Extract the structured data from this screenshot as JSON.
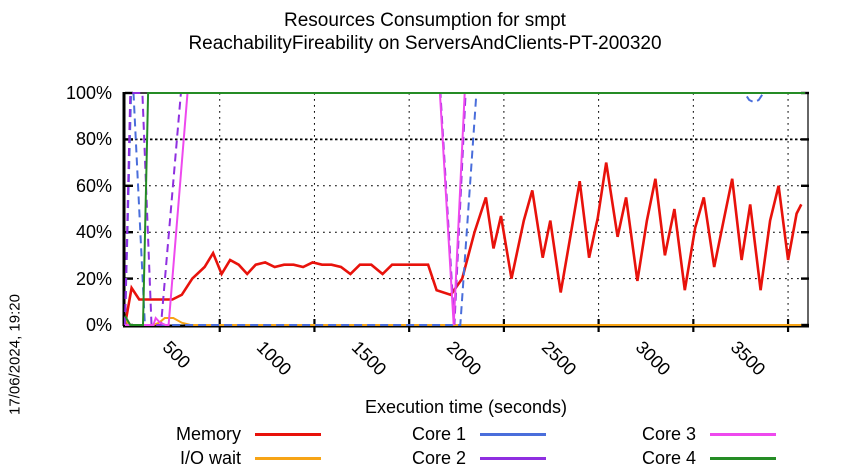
{
  "title": {
    "line1": "Resources Consumption for smpt",
    "line2": "ReachabilityFireability on ServersAndClients-PT-200320"
  },
  "timestamp": "17/06/2024, 19:20",
  "chart_data": {
    "type": "line",
    "title": "Resources Consumption for smpt ReachabilityFireability on ServersAndClients-PT-200320",
    "xlabel": "Execution time (seconds)",
    "ylabel": "",
    "xlim": [
      0,
      3600
    ],
    "ylim": [
      0,
      100
    ],
    "grid": true,
    "legend_position": "bottom",
    "x_tick_values": [
      500,
      1000,
      1500,
      2000,
      2500,
      3000,
      3500
    ],
    "x_tick_labels": [
      "500",
      "1000",
      "1500",
      "2000",
      "2500",
      "3000",
      "3500"
    ],
    "y_tick_values": [
      0,
      20,
      40,
      60,
      80,
      100
    ],
    "y_tick_labels": [
      "0%",
      "20%",
      "40%",
      "60%",
      "80%",
      "100%"
    ],
    "series": [
      {
        "name": "Memory",
        "color": "#e8120b",
        "width": 2.6,
        "dash": "",
        "points": [
          [
            0,
            0
          ],
          [
            35,
            16
          ],
          [
            75,
            11
          ],
          [
            250,
            11
          ],
          [
            300,
            13
          ],
          [
            355,
            20
          ],
          [
            420,
            25
          ],
          [
            465,
            31
          ],
          [
            510,
            22
          ],
          [
            555,
            28
          ],
          [
            600,
            26
          ],
          [
            645,
            22
          ],
          [
            690,
            26
          ],
          [
            740,
            27
          ],
          [
            790,
            25
          ],
          [
            840,
            26
          ],
          [
            890,
            26
          ],
          [
            940,
            25
          ],
          [
            990,
            27
          ],
          [
            1040,
            26
          ],
          [
            1090,
            26
          ],
          [
            1140,
            25
          ],
          [
            1190,
            22
          ],
          [
            1240,
            26
          ],
          [
            1300,
            26
          ],
          [
            1360,
            22
          ],
          [
            1410,
            26
          ],
          [
            1470,
            26
          ],
          [
            1530,
            26
          ],
          [
            1600,
            26
          ],
          [
            1645,
            15
          ],
          [
            1720,
            13
          ],
          [
            1780,
            20
          ],
          [
            1845,
            40
          ],
          [
            1905,
            55
          ],
          [
            1945,
            33
          ],
          [
            1985,
            47
          ],
          [
            2040,
            20
          ],
          [
            2105,
            45
          ],
          [
            2150,
            58
          ],
          [
            2205,
            29
          ],
          [
            2245,
            45
          ],
          [
            2300,
            14
          ],
          [
            2355,
            40
          ],
          [
            2400,
            62
          ],
          [
            2450,
            29
          ],
          [
            2495,
            46
          ],
          [
            2540,
            70
          ],
          [
            2600,
            38
          ],
          [
            2645,
            55
          ],
          [
            2705,
            19
          ],
          [
            2755,
            45
          ],
          [
            2800,
            63
          ],
          [
            2850,
            30
          ],
          [
            2900,
            50
          ],
          [
            2955,
            15
          ],
          [
            3010,
            42
          ],
          [
            3055,
            55
          ],
          [
            3110,
            25
          ],
          [
            3160,
            45
          ],
          [
            3205,
            63
          ],
          [
            3255,
            28
          ],
          [
            3300,
            52
          ],
          [
            3355,
            15
          ],
          [
            3405,
            45
          ],
          [
            3450,
            60
          ],
          [
            3500,
            28
          ],
          [
            3545,
            48
          ],
          [
            3570,
            52
          ]
        ]
      },
      {
        "name": "I/O wait",
        "color": "#f7a416",
        "width": 2,
        "dash": "",
        "points": [
          [
            0,
            2
          ],
          [
            30,
            0
          ],
          [
            150,
            0
          ],
          [
            180,
            1
          ],
          [
            210,
            3
          ],
          [
            255,
            3
          ],
          [
            300,
            1
          ],
          [
            345,
            0
          ],
          [
            3570,
            0
          ]
        ]
      },
      {
        "name": "Core 1",
        "color": "#4a6edb",
        "width": 2,
        "dash": "8,5",
        "points": [
          [
            0,
            0
          ],
          [
            32,
            100
          ],
          [
            45,
            100
          ],
          [
            105,
            0
          ],
          [
            1770,
            0
          ],
          [
            1855,
            100
          ],
          [
            3270,
            100
          ],
          [
            3295,
            97
          ],
          [
            3320,
            96
          ],
          [
            3345,
            97
          ],
          [
            3370,
            100
          ],
          [
            3590,
            100
          ]
        ]
      },
      {
        "name": "Core 2",
        "color": "#8f2fe0",
        "width": 2,
        "dash": "8,5",
        "points": [
          [
            0,
            0
          ],
          [
            28,
            100
          ],
          [
            92,
            100
          ],
          [
            140,
            0
          ],
          [
            190,
            0
          ],
          [
            295,
            100
          ],
          [
            1665,
            100
          ],
          [
            1739,
            0
          ],
          [
            1798,
            100
          ],
          [
            3590,
            100
          ]
        ]
      },
      {
        "name": "Core 3",
        "color": "#ee49ee",
        "width": 2,
        "dash": "",
        "points": [
          [
            0,
            0
          ],
          [
            150,
            0
          ],
          [
            162,
            3
          ],
          [
            185,
            1
          ],
          [
            215,
            0
          ],
          [
            230,
            0
          ],
          [
            330,
            100
          ],
          [
            1662,
            100
          ],
          [
            1735,
            0
          ],
          [
            1793,
            100
          ],
          [
            3590,
            100
          ]
        ]
      },
      {
        "name": "Core 4",
        "color": "#258c25",
        "width": 2,
        "dash": "",
        "points": [
          [
            0,
            4
          ],
          [
            28,
            0
          ],
          [
            95,
            0
          ],
          [
            122,
            100
          ],
          [
            3590,
            100
          ]
        ]
      }
    ]
  }
}
